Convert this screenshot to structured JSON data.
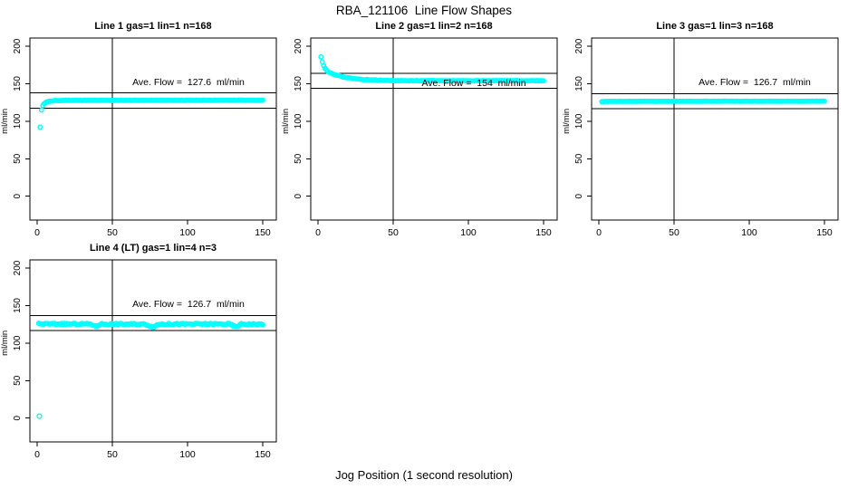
{
  "page": {
    "title": "RBA_121106  Line Flow Shapes",
    "xlabel": "Jog Position (1 second resolution)",
    "background": "#ffffff",
    "axis_color": "#000000"
  },
  "chart_data": [
    {
      "type": "scatter",
      "title": "Line 1 gas=1 lin=1 n=168",
      "annotation": "Ave. Flow =  127.6  ml/min",
      "ave_flow": 127.6,
      "n": 168,
      "ylabel": "ml/min",
      "xlim": [
        0,
        155
      ],
      "ylim": [
        0,
        210
      ],
      "xticks": [
        0,
        50,
        100,
        150
      ],
      "yticks": [
        0,
        50,
        100,
        150,
        200
      ],
      "vline_x": 50,
      "hlines": [
        117.6,
        137.6
      ],
      "point_color": "#00FFFF",
      "series": {
        "name": "flow",
        "x_start": 2,
        "x_end": 150,
        "noise": 0.25,
        "seed": 11,
        "anchors": [
          [
            2,
            92
          ],
          [
            3,
            117.5
          ],
          [
            4,
            122
          ],
          [
            5,
            124.3
          ],
          [
            6,
            125.5
          ],
          [
            8,
            126.6
          ],
          [
            12,
            127.4
          ],
          [
            20,
            127.8
          ],
          [
            150,
            128
          ]
        ]
      },
      "outliers": []
    },
    {
      "type": "scatter",
      "title": "Line 2 gas=1 lin=2 n=168",
      "annotation": "Ave. Flow =  154  ml/min",
      "ave_flow": 154,
      "n": 168,
      "ylabel": "ml/min",
      "xlim": [
        0,
        155
      ],
      "ylim": [
        0,
        210
      ],
      "xticks": [
        0,
        50,
        100,
        150
      ],
      "yticks": [
        0,
        50,
        100,
        150,
        200
      ],
      "vline_x": 50,
      "hlines": [
        144,
        164
      ],
      "point_color": "#00FFFF",
      "series": {
        "name": "flow",
        "x_start": 2,
        "x_end": 150,
        "noise": 0.3,
        "seed": 22,
        "anchors": [
          [
            2,
            186
          ],
          [
            3,
            178.5
          ],
          [
            4,
            173
          ],
          [
            5,
            169.5
          ],
          [
            6,
            167
          ],
          [
            8,
            164.5
          ],
          [
            10,
            163
          ],
          [
            14,
            160.5
          ],
          [
            18,
            158.5
          ],
          [
            24,
            156.8
          ],
          [
            30,
            155.6
          ],
          [
            40,
            154.6
          ],
          [
            55,
            154
          ],
          [
            150,
            154
          ]
        ]
      },
      "outliers": []
    },
    {
      "type": "scatter",
      "title": "Line 3 gas=1 lin=3 n=168",
      "annotation": "Ave. Flow =  126.7  ml/min",
      "ave_flow": 126.7,
      "n": 168,
      "ylabel": "ml/min",
      "xlim": [
        0,
        155
      ],
      "ylim": [
        0,
        210
      ],
      "xticks": [
        0,
        50,
        100,
        150
      ],
      "yticks": [
        0,
        50,
        100,
        150,
        200
      ],
      "vline_x": 50,
      "hlines": [
        116.7,
        136.7
      ],
      "point_color": "#00FFFF",
      "series": {
        "name": "flow",
        "x_start": 2,
        "x_end": 150,
        "noise": 0.15,
        "seed": 33,
        "anchors": [
          [
            2,
            126
          ],
          [
            5,
            126.5
          ],
          [
            150,
            126.7
          ]
        ]
      },
      "outliers": []
    },
    {
      "type": "scatter",
      "title": "Line 4 (LT) gas=1 lin=4 n=3",
      "annotation": "Ave. Flow =  126.7  ml/min",
      "ave_flow": 126.7,
      "n": 3,
      "ylabel": "ml/min",
      "xlim": [
        0,
        155
      ],
      "ylim": [
        0,
        210
      ],
      "xticks": [
        0,
        50,
        100,
        150
      ],
      "yticks": [
        0,
        50,
        100,
        150,
        200
      ],
      "vline_x": 50,
      "hlines": [
        116.7,
        136.7
      ],
      "point_color": "#00FFFF",
      "series": {
        "name": "flow",
        "x_start": 1,
        "x_end": 150,
        "noise": 1.0,
        "seed": 44,
        "anchors": [
          [
            1,
            125.5
          ],
          [
            36,
            125.3
          ],
          [
            39,
            121.8
          ],
          [
            42,
            125.3
          ],
          [
            72,
            125.2
          ],
          [
            77,
            121.3
          ],
          [
            81,
            125.2
          ],
          [
            128,
            125.4
          ],
          [
            132,
            121.5
          ],
          [
            136,
            125.4
          ],
          [
            150,
            125
          ]
        ]
      },
      "outliers": [
        [
          1.5,
          2.5
        ]
      ]
    }
  ]
}
